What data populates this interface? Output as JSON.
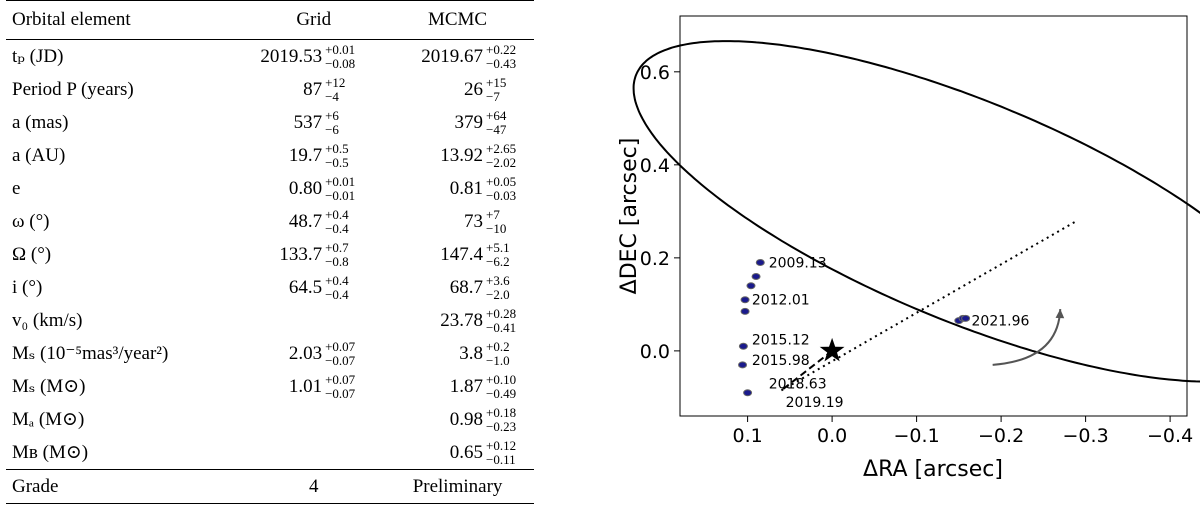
{
  "table": {
    "headers": {
      "name": "Orbital element",
      "grid": "Grid",
      "mcmc": "MCMC"
    },
    "rows": [
      {
        "name": "tₚ (JD)",
        "grid": {
          "v": "2019.53",
          "up": "+0.01",
          "dn": "−0.08"
        },
        "mcmc": {
          "v": "2019.67",
          "up": "+0.22",
          "dn": "−0.43"
        }
      },
      {
        "name": "Period P (years)",
        "grid": {
          "v": "87",
          "up": "+12",
          "dn": "−4"
        },
        "mcmc": {
          "v": "26",
          "up": "+15",
          "dn": "−7"
        }
      },
      {
        "name": "a (mas)",
        "grid": {
          "v": "537",
          "up": "+6",
          "dn": "−6"
        },
        "mcmc": {
          "v": "379",
          "up": "+64",
          "dn": "−47"
        }
      },
      {
        "name": "a (AU)",
        "grid": {
          "v": "19.7",
          "up": "+0.5",
          "dn": "−0.5"
        },
        "mcmc": {
          "v": "13.92",
          "up": "+2.65",
          "dn": "−2.02"
        }
      },
      {
        "name": "e",
        "grid": {
          "v": "0.80",
          "up": "+0.01",
          "dn": "−0.01"
        },
        "mcmc": {
          "v": "0.81",
          "up": "+0.05",
          "dn": "−0.03"
        }
      },
      {
        "name": "ω (°)",
        "grid": {
          "v": "48.7",
          "up": "+0.4",
          "dn": "−0.4"
        },
        "mcmc": {
          "v": "73",
          "up": "+7",
          "dn": "−10"
        }
      },
      {
        "name": "Ω (°)",
        "grid": {
          "v": "133.7",
          "up": "+0.7",
          "dn": "−0.8"
        },
        "mcmc": {
          "v": "147.4",
          "up": "+5.1",
          "dn": "−6.2"
        }
      },
      {
        "name": "i (°)",
        "grid": {
          "v": "64.5",
          "up": "+0.4",
          "dn": "−0.4"
        },
        "mcmc": {
          "v": "68.7",
          "up": "+3.6",
          "dn": "−2.0"
        }
      },
      {
        "name": "v₀ (km/s)",
        "grid": {
          "v": "",
          "up": "",
          "dn": ""
        },
        "mcmc": {
          "v": "23.78",
          "up": "+0.28",
          "dn": "−0.41"
        }
      },
      {
        "name": "Mₛ (10⁻⁵mas³/year²)",
        "grid": {
          "v": "2.03",
          "up": "+0.07",
          "dn": "−0.07"
        },
        "mcmc": {
          "v": "3.8",
          "up": "+0.2",
          "dn": "−1.0"
        }
      },
      {
        "name": "Mₛ (M⊙)",
        "grid": {
          "v": "1.01",
          "up": "+0.07",
          "dn": "−0.07"
        },
        "mcmc": {
          "v": "1.87",
          "up": "+0.10",
          "dn": "−0.49"
        }
      },
      {
        "name": "Mₐ (M⊙)",
        "grid": {
          "v": "",
          "up": "",
          "dn": ""
        },
        "mcmc": {
          "v": "0.98",
          "up": "+0.18",
          "dn": "−0.23"
        }
      },
      {
        "name": "Mʙ (M⊙)",
        "grid": {
          "v": "",
          "up": "",
          "dn": ""
        },
        "mcmc": {
          "v": "0.65",
          "up": "+0.12",
          "dn": "−0.11"
        }
      }
    ],
    "grade": {
      "name": "Grade",
      "grid": "4",
      "mcmc": "Preliminary"
    }
  },
  "chart_data": {
    "type": "scatter",
    "title": "",
    "xlabel": "ΔRA [arcsec]",
    "ylabel": "ΔDEC [arcsec]",
    "xlim": [
      0.18,
      -0.42
    ],
    "ylim": [
      -0.14,
      0.72
    ],
    "xticks": [
      0.1,
      0.0,
      -0.1,
      -0.2,
      -0.3,
      -0.4
    ],
    "xtick_labels": [
      "0.1",
      "0.0",
      "−0.1",
      "−0.2",
      "−0.3",
      "−0.4"
    ],
    "yticks": [
      0.0,
      0.2,
      0.4,
      0.6
    ],
    "ytick_labels": [
      "0.0",
      "0.2",
      "0.4",
      "0.6"
    ],
    "orbit": {
      "center_ra": -0.16,
      "center_dec": 0.3,
      "semi_major": 0.5,
      "semi_minor": 0.2,
      "angle_deg": -42
    },
    "star": {
      "ra": 0.0,
      "dec": 0.0,
      "marker": "star"
    },
    "observations": [
      {
        "ra": 0.085,
        "dec": 0.19
      },
      {
        "ra": 0.09,
        "dec": 0.16
      },
      {
        "ra": 0.096,
        "dec": 0.14
      },
      {
        "ra": 0.103,
        "dec": 0.11
      },
      {
        "ra": 0.103,
        "dec": 0.085
      },
      {
        "ra": 0.105,
        "dec": 0.01
      },
      {
        "ra": 0.106,
        "dec": -0.03
      },
      {
        "ra": 0.1,
        "dec": -0.09
      },
      {
        "ra": -0.15,
        "dec": 0.065
      },
      {
        "ra": -0.155,
        "dec": 0.07
      },
      {
        "ra": -0.158,
        "dec": 0.07
      }
    ],
    "annotations": [
      {
        "text": "2009.13",
        "ra": 0.075,
        "dec": 0.19
      },
      {
        "text": "2012.01",
        "ra": 0.095,
        "dec": 0.11
      },
      {
        "text": "2015.12",
        "ra": 0.095,
        "dec": 0.025
      },
      {
        "text": "2015.98",
        "ra": 0.095,
        "dec": -0.02
      },
      {
        "text": "2018.63",
        "ra": 0.075,
        "dec": -0.07
      },
      {
        "text": "2019.19",
        "ra": 0.055,
        "dec": -0.11
      },
      {
        "text": "2021.96",
        "ra": -0.165,
        "dec": 0.065
      }
    ],
    "line_of_nodes": {
      "from": [
        0.06,
        -0.085
      ],
      "to": [
        -0.29,
        0.28
      ],
      "style": "dotted"
    },
    "periastron_line": {
      "from": [
        0.0,
        0.0
      ],
      "to": [
        0.06,
        -0.085
      ],
      "style": "dashed"
    },
    "motion_arrow": {
      "from": [
        -0.19,
        -0.03
      ],
      "to": [
        -0.27,
        0.09
      ],
      "direction": "counterclockwise"
    }
  }
}
